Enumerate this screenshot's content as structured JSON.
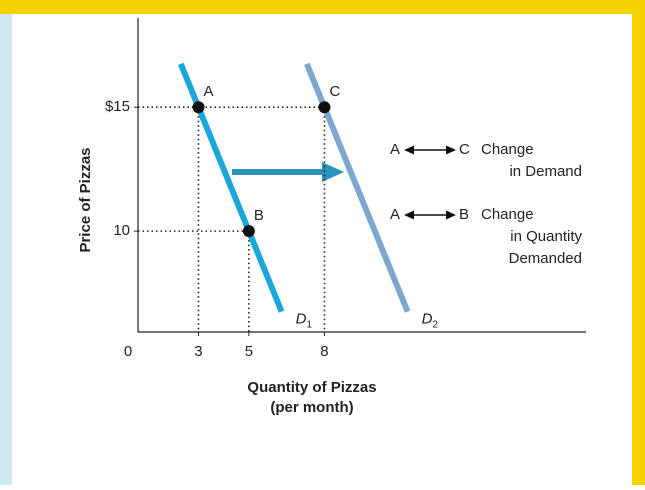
{
  "chart_data": {
    "type": "line",
    "x_label": [
      "Quantity of Pizzas",
      "(per month)"
    ],
    "y_label": "Price of Pizzas",
    "origin_label": "0",
    "xlim": [
      0.6,
      18.5
    ],
    "ylim": [
      5.93,
      18.6
    ],
    "xticks": [
      3,
      5,
      8
    ],
    "yticks": [
      {
        "value": 15,
        "label": "$15"
      },
      10
    ],
    "series": [
      {
        "name": "D",
        "subscript": "1",
        "color": "#1ba7da",
        "x": [
          2.3,
          6.3
        ],
        "values": [
          16.75,
          6.75
        ]
      },
      {
        "name": "D",
        "subscript": "2",
        "color": "#7ea7cf",
        "x": [
          7.3,
          11.3
        ],
        "values": [
          16.75,
          6.75
        ]
      }
    ],
    "points": [
      {
        "label": "A",
        "x": 3,
        "y": 15
      },
      {
        "label": "B",
        "x": 5,
        "y": 10
      },
      {
        "label": "C",
        "x": 8,
        "y": 15
      }
    ],
    "annotations": [
      {
        "from": "A",
        "to": "C",
        "text": [
          "Change",
          "in Demand"
        ]
      },
      {
        "from": "A",
        "to": "B",
        "text": [
          "Change",
          "in Quantity",
          "Demanded"
        ]
      }
    ]
  }
}
